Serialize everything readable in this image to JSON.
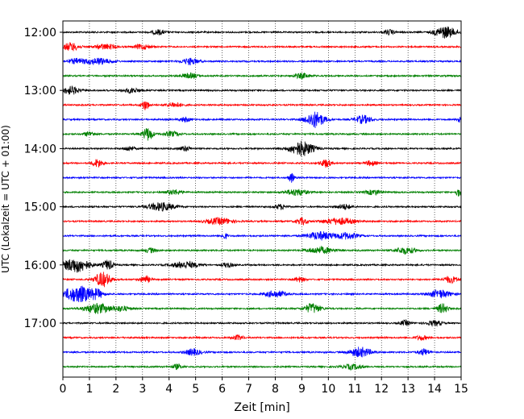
{
  "chart_data": {
    "type": "line",
    "title": "",
    "xlabel": "Zeit  [min]",
    "ylabel": "UTC (Lokalzeit = UTC + 01:00)",
    "xlim": [
      0,
      15
    ],
    "x_ticks": [
      "0",
      "1",
      "2",
      "3",
      "4",
      "5",
      "6",
      "7",
      "8",
      "9",
      "10",
      "11",
      "12",
      "13",
      "14",
      "15"
    ],
    "y_ticks": [
      {
        "label": "12:00",
        "row": 0
      },
      {
        "label": "13:00",
        "row": 4
      },
      {
        "label": "14:00",
        "row": 8
      },
      {
        "label": "15:00",
        "row": 12
      },
      {
        "label": "16:00",
        "row": 16
      },
      {
        "label": "17:00",
        "row": 20
      }
    ],
    "grid": {
      "x": true,
      "style": "dotted"
    },
    "trace_colors": [
      "#000000",
      "#ff0000",
      "#0000ff",
      "#008000"
    ],
    "rows_start_utc": "12:00",
    "row_interval_min": 15,
    "rows": [
      {
        "start": "12:00",
        "bursts": [
          [
            14.4,
            0.4,
            7
          ],
          [
            3.6,
            0.25,
            3
          ],
          [
            12.3,
            0.2,
            3
          ]
        ]
      },
      {
        "start": "12:15",
        "bursts": [
          [
            0.3,
            0.3,
            5
          ],
          [
            1.6,
            0.4,
            3
          ],
          [
            3.0,
            0.3,
            3
          ]
        ]
      },
      {
        "start": "12:30",
        "bursts": [
          [
            1.3,
            0.5,
            4
          ],
          [
            4.8,
            0.3,
            4
          ],
          [
            0.5,
            0.3,
            3
          ]
        ]
      },
      {
        "start": "12:45",
        "bursts": [
          [
            4.8,
            0.3,
            3
          ],
          [
            9.0,
            0.3,
            3
          ]
        ]
      },
      {
        "start": "13:00",
        "bursts": [
          [
            0.3,
            0.3,
            5
          ],
          [
            2.6,
            0.3,
            3
          ]
        ]
      },
      {
        "start": "13:15",
        "bursts": [
          [
            3.1,
            0.15,
            6
          ],
          [
            4.2,
            0.3,
            3
          ]
        ]
      },
      {
        "start": "13:30",
        "bursts": [
          [
            9.5,
            0.35,
            10
          ],
          [
            11.3,
            0.3,
            5
          ],
          [
            15.0,
            0.1,
            10
          ],
          [
            4.6,
            0.2,
            3
          ]
        ]
      },
      {
        "start": "13:45",
        "bursts": [
          [
            3.2,
            0.2,
            8
          ],
          [
            4.1,
            0.3,
            3
          ],
          [
            1.0,
            0.2,
            3
          ]
        ]
      },
      {
        "start": "14:00",
        "bursts": [
          [
            9.0,
            0.45,
            9
          ],
          [
            2.5,
            0.2,
            3
          ],
          [
            4.6,
            0.2,
            3
          ]
        ]
      },
      {
        "start": "14:15",
        "bursts": [
          [
            1.3,
            0.2,
            5
          ],
          [
            9.9,
            0.2,
            5
          ],
          [
            11.6,
            0.2,
            3
          ]
        ]
      },
      {
        "start": "14:30",
        "bursts": [
          [
            8.6,
            0.1,
            6
          ]
        ]
      },
      {
        "start": "14:45",
        "bursts": [
          [
            8.8,
            0.4,
            4
          ],
          [
            14.9,
            0.1,
            5
          ],
          [
            4.2,
            0.3,
            3
          ],
          [
            11.7,
            0.3,
            3
          ]
        ]
      },
      {
        "start": "15:00",
        "bursts": [
          [
            3.7,
            0.5,
            5
          ],
          [
            8.2,
            0.2,
            3
          ],
          [
            10.6,
            0.3,
            3
          ]
        ]
      },
      {
        "start": "15:15",
        "bursts": [
          [
            5.9,
            0.5,
            4
          ],
          [
            9.0,
            0.2,
            4
          ],
          [
            10.4,
            0.6,
            4
          ]
        ]
      },
      {
        "start": "15:30",
        "bursts": [
          [
            6.1,
            0.1,
            4
          ],
          [
            9.7,
            0.5,
            5
          ],
          [
            10.7,
            0.4,
            4
          ]
        ]
      },
      {
        "start": "15:45",
        "bursts": [
          [
            9.7,
            0.5,
            4
          ],
          [
            12.9,
            0.4,
            4
          ],
          [
            3.3,
            0.2,
            3
          ]
        ]
      },
      {
        "start": "16:00",
        "bursts": [
          [
            0.5,
            0.5,
            9
          ],
          [
            1.7,
            0.2,
            6
          ],
          [
            4.6,
            0.5,
            4
          ],
          [
            6.2,
            0.2,
            3
          ]
        ]
      },
      {
        "start": "16:15",
        "bursts": [
          [
            1.5,
            0.3,
            9
          ],
          [
            3.1,
            0.2,
            4
          ],
          [
            8.9,
            0.2,
            3
          ],
          [
            14.6,
            0.3,
            4
          ]
        ]
      },
      {
        "start": "16:30",
        "bursts": [
          [
            0.6,
            0.6,
            10
          ],
          [
            1.3,
            0.2,
            4
          ],
          [
            8.0,
            0.4,
            4
          ],
          [
            14.2,
            0.4,
            5
          ]
        ]
      },
      {
        "start": "16:45",
        "bursts": [
          [
            1.3,
            0.5,
            6
          ],
          [
            9.4,
            0.3,
            6
          ],
          [
            14.3,
            0.2,
            6
          ],
          [
            2.2,
            0.3,
            3
          ]
        ]
      },
      {
        "start": "17:00",
        "bursts": [
          [
            12.9,
            0.2,
            3
          ],
          [
            14.0,
            0.3,
            3
          ]
        ]
      },
      {
        "start": "17:15",
        "bursts": [
          [
            6.6,
            0.2,
            3
          ],
          [
            13.5,
            0.2,
            3
          ]
        ]
      },
      {
        "start": "17:30",
        "bursts": [
          [
            11.2,
            0.4,
            6
          ],
          [
            4.9,
            0.3,
            4
          ],
          [
            13.6,
            0.2,
            4
          ]
        ]
      },
      {
        "start": "17:45",
        "bursts": [
          [
            10.9,
            0.4,
            3
          ],
          [
            4.3,
            0.2,
            3
          ]
        ]
      }
    ]
  }
}
